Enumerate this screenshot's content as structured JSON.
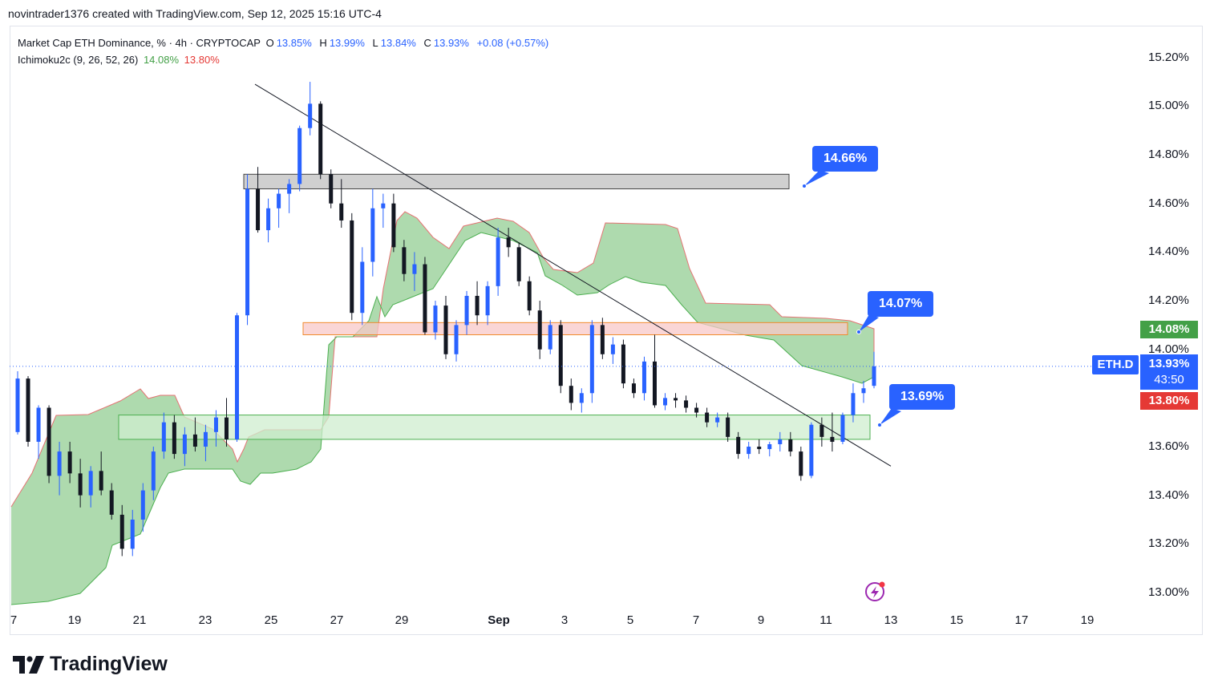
{
  "header": {
    "credit": "novintrader1376 created with TradingView.com, Sep 12, 2025 15:16 UTC-4"
  },
  "legend": {
    "symbol_line": "Market Cap ETH Dominance, % · 4h · CRYPTOCAP",
    "o_label": "O",
    "o_value": "13.85%",
    "h_label": "H",
    "h_value": "13.99%",
    "l_label": "L",
    "l_value": "13.84%",
    "c_label": "C",
    "c_value": "13.93%",
    "change": "+0.08 (+0.57%)",
    "indicator": "Ichimoku2c (9, 26, 52, 26)",
    "ind_v1": "14.08%",
    "ind_v2": "13.80%"
  },
  "price_scale": {
    "labels": [
      "15.20%",
      "15.00%",
      "14.80%",
      "14.60%",
      "14.40%",
      "14.20%",
      "14.00%",
      "13.60%",
      "13.40%",
      "13.20%",
      "13.00%"
    ],
    "tag_green": "14.08%",
    "tag_price": "13.93%",
    "tag_countdown": "43:50",
    "tag_red": "13.80%",
    "symbol_tag": "ETH.D"
  },
  "time_axis": {
    "labels": [
      "7",
      "19",
      "21",
      "23",
      "25",
      "27",
      "29",
      "Sep",
      "3",
      "5",
      "7",
      "9",
      "11",
      "13",
      "15",
      "17",
      "19"
    ]
  },
  "annotations": {
    "callout_high": "14.66%",
    "callout_mid": "14.07%",
    "callout_low": "13.69%"
  },
  "brand": {
    "name": "TradingView"
  },
  "colors": {
    "up": "#2962ff",
    "down": "#131722",
    "cloud": "#5cb85c",
    "cloud_edge_red": "#e57373",
    "accent": "#2962ff"
  },
  "chart_data": {
    "type": "candlestick",
    "title": "Market Cap ETH Dominance, % · 4h · CRYPTOCAP",
    "ylim": [
      12.97,
      15.28
    ],
    "y_ticks": [
      13.0,
      13.2,
      13.4,
      13.6,
      14.0,
      14.2,
      14.4,
      14.6,
      14.8,
      15.0,
      15.2
    ],
    "x_tick_labels": [
      "7",
      "19",
      "21",
      "23",
      "25",
      "27",
      "29",
      "Sep",
      "3",
      "5",
      "7",
      "9",
      "11",
      "13",
      "15",
      "17",
      "19"
    ],
    "last_close": 13.93,
    "zones": [
      {
        "kind": "supply",
        "from": 14.66,
        "to": 14.72,
        "color": "#c8c8c8"
      },
      {
        "kind": "resistance",
        "from": 14.06,
        "to": 14.11,
        "color": "#f8c8c8"
      },
      {
        "kind": "support",
        "from": 13.63,
        "to": 13.73,
        "color": "#cfeecf"
      }
    ],
    "trendline": {
      "from": [
        15.09
      ],
      "to": [
        13.52
      ]
    },
    "candles": [
      [
        13.66,
        13.91,
        13.65,
        13.88
      ],
      [
        13.88,
        13.89,
        13.6,
        13.62
      ],
      [
        13.62,
        13.77,
        13.55,
        13.76
      ],
      [
        13.76,
        13.77,
        13.45,
        13.48
      ],
      [
        13.48,
        13.62,
        13.4,
        13.58
      ],
      [
        13.58,
        13.62,
        13.45,
        13.49
      ],
      [
        13.49,
        13.55,
        13.35,
        13.4
      ],
      [
        13.4,
        13.52,
        13.35,
        13.5
      ],
      [
        13.5,
        13.58,
        13.4,
        13.42
      ],
      [
        13.42,
        13.45,
        13.3,
        13.32
      ],
      [
        13.32,
        13.36,
        13.15,
        13.18
      ],
      [
        13.18,
        13.34,
        13.15,
        13.3
      ],
      [
        13.3,
        13.45,
        13.25,
        13.42
      ],
      [
        13.42,
        13.6,
        13.38,
        13.58
      ],
      [
        13.58,
        13.74,
        13.55,
        13.7
      ],
      [
        13.7,
        13.73,
        13.55,
        13.57
      ],
      [
        13.57,
        13.68,
        13.52,
        13.65
      ],
      [
        13.65,
        13.72,
        13.58,
        13.6
      ],
      [
        13.6,
        13.69,
        13.54,
        13.66
      ],
      [
        13.66,
        13.75,
        13.6,
        13.72
      ],
      [
        13.72,
        13.8,
        13.6,
        13.63
      ],
      [
        13.63,
        14.15,
        13.62,
        14.14
      ],
      [
        14.14,
        14.72,
        14.1,
        14.66
      ],
      [
        14.66,
        14.75,
        14.48,
        14.49
      ],
      [
        14.49,
        14.62,
        14.44,
        14.58
      ],
      [
        14.58,
        14.66,
        14.5,
        14.64
      ],
      [
        14.64,
        14.7,
        14.56,
        14.68
      ],
      [
        14.68,
        14.92,
        14.65,
        14.91
      ],
      [
        14.91,
        15.1,
        14.88,
        15.01
      ],
      [
        15.01,
        15.02,
        14.7,
        14.72
      ],
      [
        14.72,
        14.74,
        14.58,
        14.6
      ],
      [
        14.6,
        14.7,
        14.5,
        14.53
      ],
      [
        14.53,
        14.56,
        14.12,
        14.15
      ],
      [
        14.15,
        14.42,
        14.1,
        14.36
      ],
      [
        14.36,
        14.66,
        14.3,
        14.58
      ],
      [
        14.58,
        14.64,
        14.5,
        14.6
      ],
      [
        14.6,
        14.64,
        14.4,
        14.42
      ],
      [
        14.42,
        14.45,
        14.28,
        14.31
      ],
      [
        14.31,
        14.4,
        14.24,
        14.35
      ],
      [
        14.35,
        14.38,
        14.06,
        14.07
      ],
      [
        14.07,
        14.2,
        14.04,
        14.18
      ],
      [
        14.18,
        14.22,
        13.96,
        13.98
      ],
      [
        13.98,
        14.12,
        13.95,
        14.1
      ],
      [
        14.1,
        14.24,
        14.06,
        14.22
      ],
      [
        14.22,
        14.28,
        14.1,
        14.14
      ],
      [
        14.14,
        14.28,
        14.1,
        14.26
      ],
      [
        14.26,
        14.5,
        14.22,
        14.46
      ],
      [
        14.46,
        14.5,
        14.38,
        14.42
      ],
      [
        14.42,
        14.44,
        14.26,
        14.28
      ],
      [
        14.28,
        14.3,
        14.14,
        14.16
      ],
      [
        14.16,
        14.2,
        13.96,
        14.0
      ],
      [
        14.0,
        14.12,
        13.98,
        14.1
      ],
      [
        14.1,
        14.12,
        13.82,
        13.85
      ],
      [
        13.85,
        13.88,
        13.75,
        13.78
      ],
      [
        13.78,
        13.84,
        13.74,
        13.82
      ],
      [
        13.82,
        14.12,
        13.78,
        14.1
      ],
      [
        14.1,
        14.13,
        13.96,
        13.98
      ],
      [
        13.98,
        14.05,
        13.94,
        14.02
      ],
      [
        14.02,
        14.04,
        13.84,
        13.86
      ],
      [
        13.86,
        13.88,
        13.8,
        13.82
      ],
      [
        13.82,
        13.97,
        13.79,
        13.95
      ],
      [
        13.95,
        14.06,
        13.76,
        13.77
      ],
      [
        13.77,
        13.82,
        13.75,
        13.8
      ],
      [
        13.8,
        13.82,
        13.76,
        13.79
      ],
      [
        13.79,
        13.81,
        13.74,
        13.76
      ],
      [
        13.76,
        13.78,
        13.72,
        13.74
      ],
      [
        13.74,
        13.76,
        13.68,
        13.7
      ],
      [
        13.7,
        13.74,
        13.68,
        13.72
      ],
      [
        13.72,
        13.74,
        13.62,
        13.64
      ],
      [
        13.64,
        13.66,
        13.55,
        13.57
      ],
      [
        13.57,
        13.62,
        13.55,
        13.6
      ],
      [
        13.6,
        13.63,
        13.57,
        13.59
      ],
      [
        13.59,
        13.62,
        13.56,
        13.61
      ],
      [
        13.61,
        13.66,
        13.58,
        13.63
      ],
      [
        13.63,
        13.66,
        13.56,
        13.58
      ],
      [
        13.58,
        13.6,
        13.46,
        13.48
      ],
      [
        13.48,
        13.7,
        13.47,
        13.69
      ],
      [
        13.69,
        13.72,
        13.6,
        13.64
      ],
      [
        13.64,
        13.74,
        13.58,
        13.62
      ],
      [
        13.62,
        13.74,
        13.61,
        13.73
      ],
      [
        13.73,
        13.86,
        13.7,
        13.82
      ],
      [
        13.82,
        13.87,
        13.78,
        13.84
      ],
      [
        13.85,
        13.99,
        13.84,
        13.93
      ]
    ]
  }
}
